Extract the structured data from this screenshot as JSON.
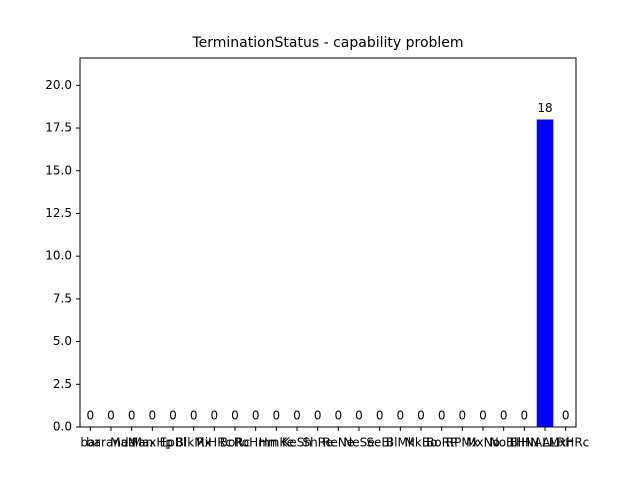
{
  "chart_data": {
    "type": "bar",
    "title": "TerminationStatus - capability problem",
    "categories": [
      "bar",
      "baranda",
      "MaMan",
      "MaxHp",
      "EpBl",
      "BlkMx",
      "RiHRc",
      "BoRc",
      "RoHmn",
      "HmKe",
      "KeSh",
      "ShRe",
      "ReNe",
      "NeSe",
      "SeBl",
      "BlMk",
      "MkBo",
      "BoRP",
      "RPMx",
      "MxNo",
      "NoBl",
      "BlHN",
      "HNALMxh",
      "ALRHRc"
    ],
    "values": [
      0,
      0,
      0,
      0,
      0,
      0,
      0,
      0,
      0,
      0,
      0,
      0,
      0,
      0,
      0,
      0,
      0,
      0,
      0,
      0,
      0,
      0,
      18,
      0
    ],
    "color": "#0000ff",
    "ylim": [
      0,
      21.6
    ],
    "yticks": [
      {
        "value": 0,
        "label": "0.0"
      },
      2.5,
      {
        "value": 5,
        "label": "5.0"
      },
      7.5,
      {
        "value": 10,
        "label": "10.0"
      },
      12.5,
      {
        "value": 15,
        "label": "15.0"
      },
      17.5,
      {
        "value": 20,
        "label": "20.0"
      }
    ],
    "grid": false
  }
}
